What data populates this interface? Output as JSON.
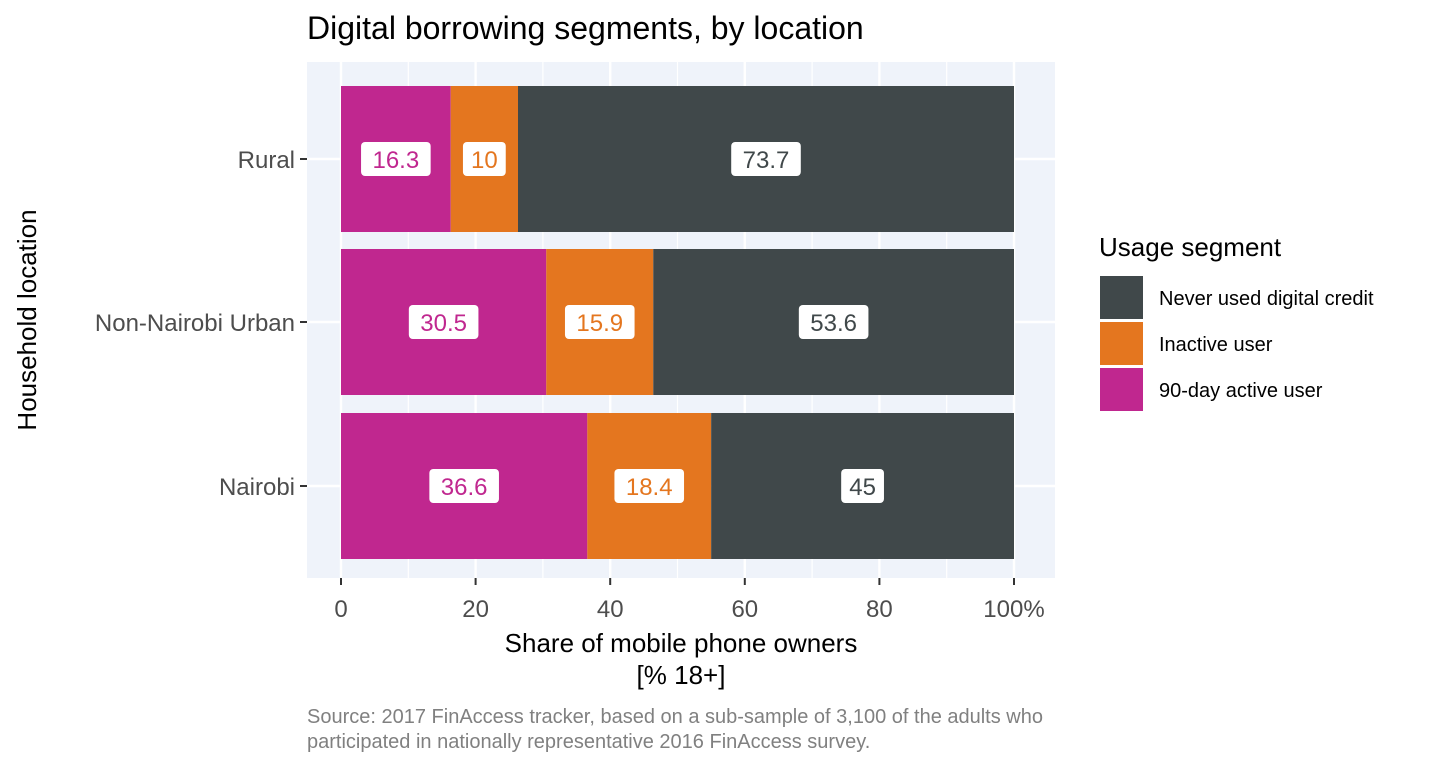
{
  "chart_data": {
    "type": "bar",
    "orientation": "horizontal",
    "stacked": true,
    "title": "Digital borrowing segments, by location",
    "xlabel_line1": "Share of mobile phone owners",
    "xlabel_line2": "[% 18+]",
    "ylabel": "Household location",
    "xlim": [
      0,
      100
    ],
    "x_ticks": [
      "0",
      "20",
      "40",
      "60",
      "80",
      "100%"
    ],
    "x_tick_values": [
      0,
      20,
      40,
      60,
      80,
      100
    ],
    "categories": [
      "Rural",
      "Non-Nairobi Urban",
      "Nairobi"
    ],
    "series": [
      {
        "name": "90-day active user",
        "color": "#C0278F",
        "values": [
          16.3,
          30.5,
          36.6
        ],
        "labels": [
          "16.3",
          "30.5",
          "36.6"
        ]
      },
      {
        "name": "Inactive user",
        "color": "#E4761F",
        "values": [
          10,
          15.9,
          18.4
        ],
        "labels": [
          "10",
          "15.9",
          "18.4"
        ]
      },
      {
        "name": "Never used digital credit",
        "color": "#40484A",
        "values": [
          73.7,
          53.6,
          45
        ],
        "labels": [
          "73.7",
          "53.6",
          "45"
        ]
      }
    ],
    "legend": {
      "title": "Usage segment",
      "position": "right",
      "order": [
        "Never used digital credit",
        "Inactive user",
        "90-day active user"
      ]
    },
    "panel_background": "#EFF3FA",
    "grid": true,
    "caption_line1": "Source: 2017 FinAccess tracker, based on a sub-sample of 3,100 of the adults who",
    "caption_line2": "participated in nationally representative 2016 FinAccess survey."
  }
}
